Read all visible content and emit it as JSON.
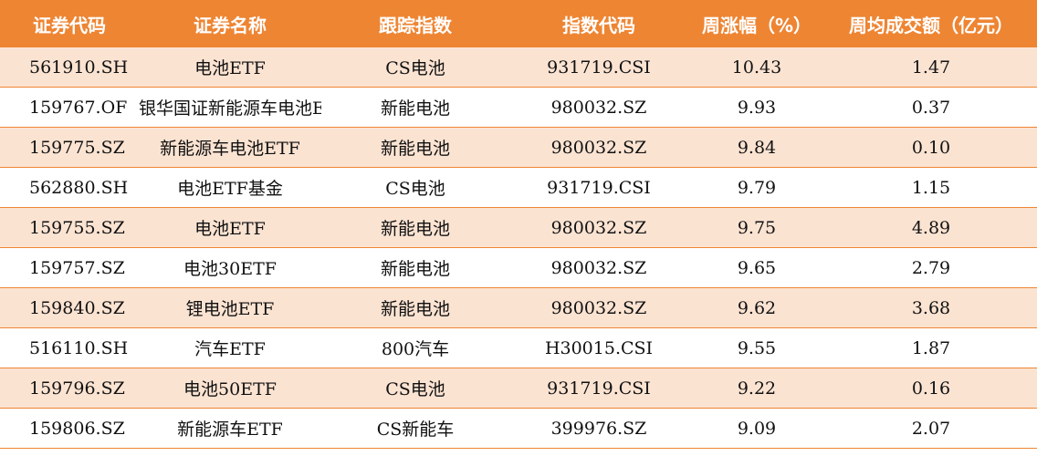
{
  "table": {
    "headers": [
      "证券代码",
      "证券名称",
      "跟踪指数",
      "指数代码",
      "周涨幅（%）",
      "周均成交额（亿元）"
    ],
    "rows": [
      [
        "561910.SH",
        "电池ETF",
        "CS电池",
        "931719.CSI",
        "10.43",
        "1.47"
      ],
      [
        "159767.OF",
        "银华国证新能源车电池ETF",
        "新能电池",
        "980032.SZ",
        "9.93",
        "0.37"
      ],
      [
        "159775.SZ",
        "新能源车电池ETF",
        "新能电池",
        "980032.SZ",
        "9.84",
        "0.10"
      ],
      [
        "562880.SH",
        "电池ETF基金",
        "CS电池",
        "931719.CSI",
        "9.79",
        "1.15"
      ],
      [
        "159755.SZ",
        "电池ETF",
        "新能电池",
        "980032.SZ",
        "9.75",
        "4.89"
      ],
      [
        "159757.SZ",
        "电池30ETF",
        "新能电池",
        "980032.SZ",
        "9.65",
        "2.79"
      ],
      [
        "159840.SZ",
        "锂电池ETF",
        "新能电池",
        "980032.SZ",
        "9.62",
        "3.68"
      ],
      [
        "516110.SH",
        "汽车ETF",
        "800汽车",
        "H30015.CSI",
        "9.55",
        "1.87"
      ],
      [
        "159796.SZ",
        "电池50ETF",
        "CS电池",
        "931719.CSI",
        "9.22",
        "0.16"
      ],
      [
        "159806.SZ",
        "新能源车ETF",
        "CS新能车",
        "399976.SZ",
        "9.09",
        "2.07"
      ]
    ]
  },
  "colors": {
    "header_bg": "#ee8533",
    "alt_row_bg": "#fbe3d2",
    "border": "#ee8533"
  }
}
